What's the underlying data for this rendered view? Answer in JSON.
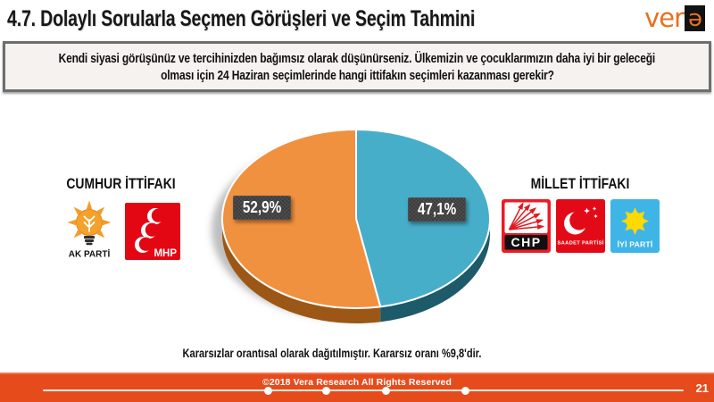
{
  "slide": {
    "title": "4.7. Dolaylı Sorularla Seçmen Görüşleri ve Seçim Tahmini",
    "page_number": "21"
  },
  "logo": {
    "text": "ver",
    "last_letter": "ə",
    "color": "#E87020"
  },
  "question": {
    "lines": [
      "Kendi siyasi görüşünüz ve tercihinizden bağımsız olarak düşünürseniz. Ülkemizin ve çocuklarımızın daha iyi bir geleceği",
      "olması için 24 Haziran seçimlerinde hangi ittifakın seçimleri kazanması gerekir?"
    ]
  },
  "chart_data": {
    "type": "pie",
    "style": "3d",
    "start_angle_deg": 0,
    "direction": "clockwise",
    "unit": "percent",
    "slices": [
      {
        "label": "Millet İttifakı",
        "value": 47.1,
        "display": "47,1%",
        "color": "#47AEC9",
        "side_color": "#1D5A6A"
      },
      {
        "label": "Cumhur İttifakı",
        "value": 52.9,
        "display": "52,9%",
        "color": "#F09140",
        "side_color": "#9C5716"
      }
    ],
    "label_style": {
      "background": "#3A3A3A",
      "text_color": "#FFFFFF"
    }
  },
  "alliances": {
    "left": {
      "label": "CUMHUR İTTİFAKI",
      "logos": [
        {
          "name": "ak-parti",
          "caption": "AK PARTİ",
          "color": "#F59C28"
        },
        {
          "name": "mhp",
          "caption": "MHP",
          "color": "#E30613"
        }
      ]
    },
    "right": {
      "label": "MİLLET İTTİFAKI",
      "logos": [
        {
          "name": "chp",
          "caption": "CHP",
          "color": "#ED1B24"
        },
        {
          "name": "saadet-partisi",
          "caption": "SAADET PARTİSİ",
          "color": "#E30A17"
        },
        {
          "name": "iyi-parti",
          "caption": "İYİ PARTİ",
          "color": "#3FB4E7"
        }
      ]
    }
  },
  "note": "Kararsızlar orantısal olarak dağıtılmıştır. Kararsız oranı %9,8'dir.",
  "footer": {
    "copyright": "©2018 Vera Research All Rights Reserved",
    "color": "#E64B1C"
  }
}
